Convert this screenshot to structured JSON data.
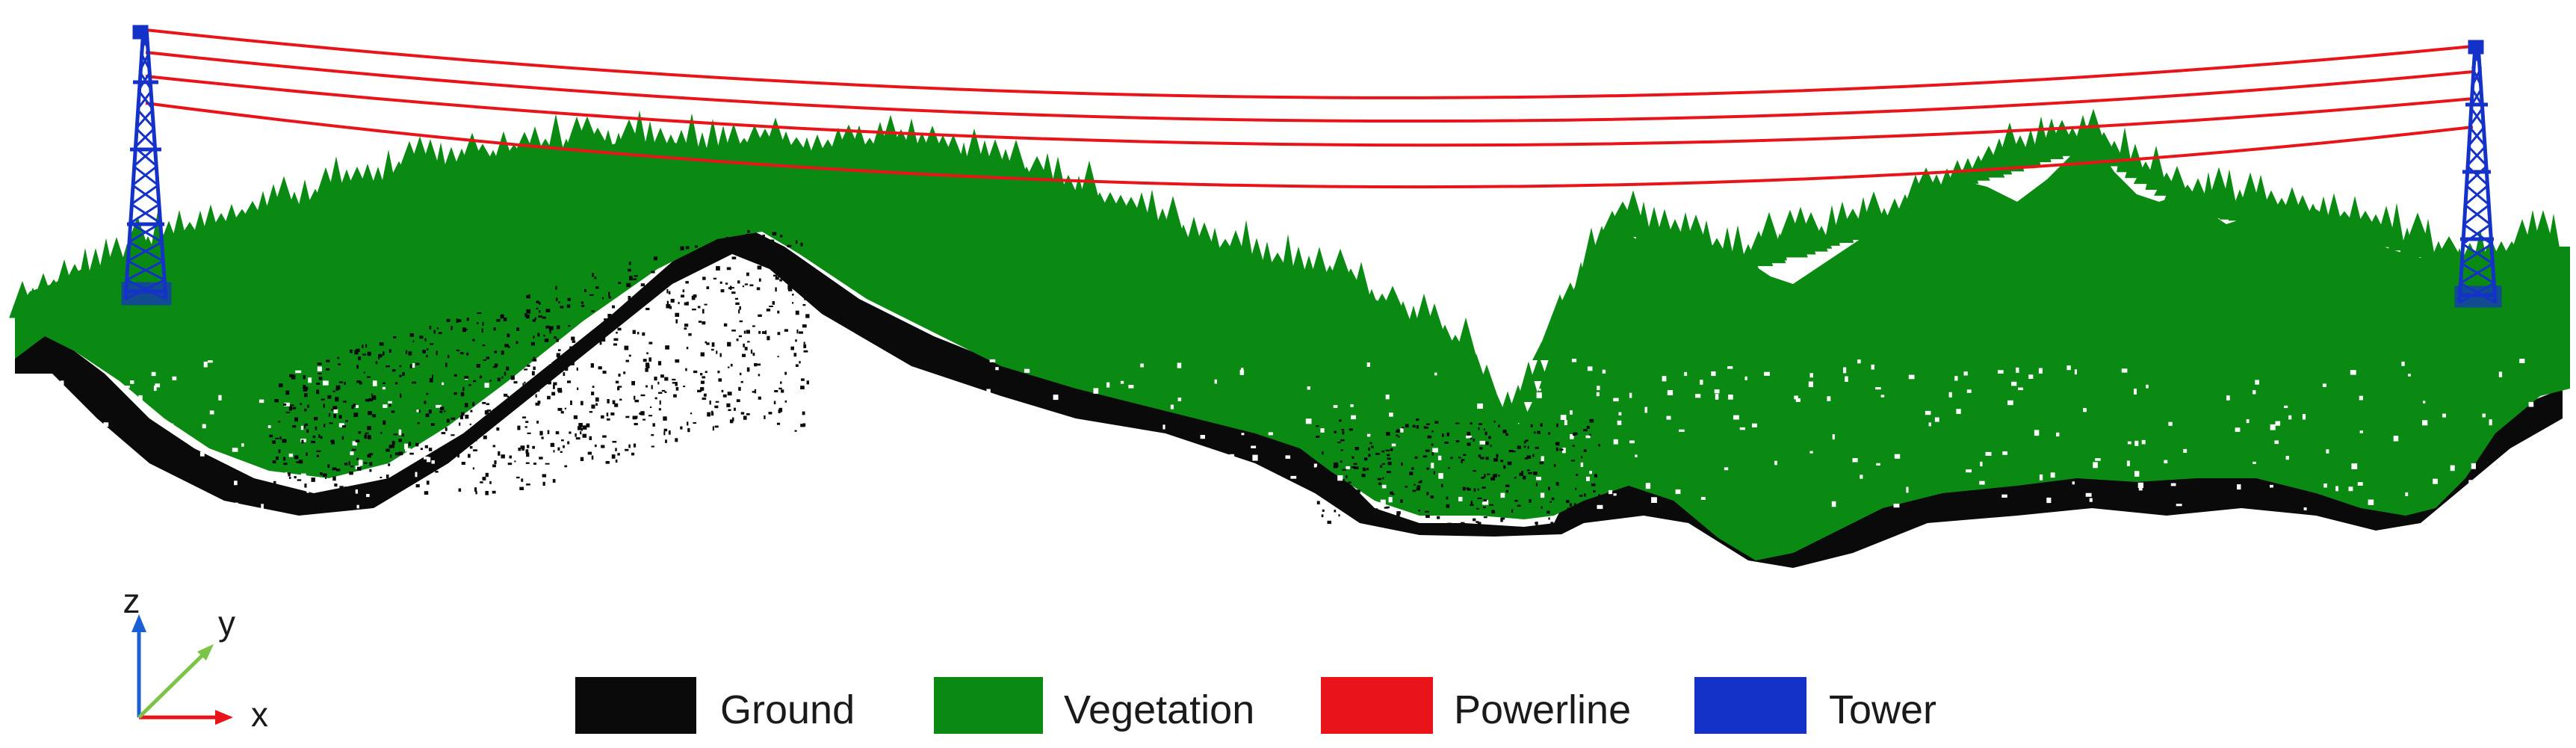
{
  "legend": {
    "items": [
      {
        "label": "Ground",
        "color": "#0a0a0a"
      },
      {
        "label": "Vegetation",
        "color": "#0a8a12"
      },
      {
        "label": "Powerline",
        "color": "#e8141a"
      },
      {
        "label": "Tower",
        "color": "#1432c8"
      }
    ]
  },
  "axes": {
    "z_label": "z",
    "y_label": "y",
    "x_label": "x",
    "z_color": "#1a5fd6",
    "y_color": "#7cc447",
    "x_color": "#e8141a"
  }
}
